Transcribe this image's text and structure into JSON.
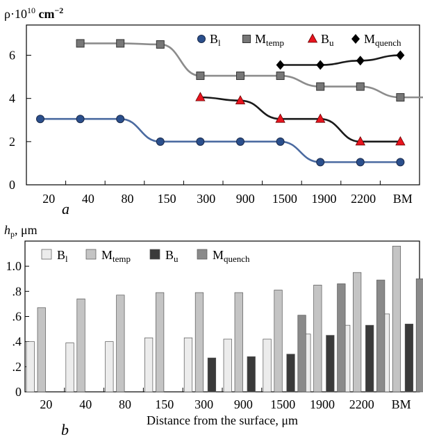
{
  "chart_data": [
    {
      "type": "line",
      "panel_label": "a",
      "ylabel": "ρ·10",
      "ylabel_exp": "10",
      "ylabel_unit": "cm",
      "ylabel_unit_exp": "−2",
      "ylim": [
        0,
        7.4
      ],
      "yticks": [
        0,
        2,
        4,
        6
      ],
      "categories": [
        "20",
        "40",
        "80",
        "150",
        "300",
        "900",
        "1500",
        "1900",
        "2200",
        "BM"
      ],
      "series": [
        {
          "name": "B",
          "sub": "l",
          "marker": "circle",
          "color": "#4a6aa0",
          "line": "#4a6aa0",
          "marker_color": "#2b4f8c",
          "values": [
            3.05,
            3.05,
            3.05,
            2.0,
            2.0,
            2.0,
            2.0,
            1.05,
            1.05,
            1.05
          ]
        },
        {
          "name": "M",
          "sub": "temp",
          "marker": "square",
          "color": "#808080",
          "line": "#8c8c8c",
          "marker_color": "#777777",
          "values": [
            6.55,
            6.55,
            6.5,
            5.05,
            5.05,
            5.05,
            4.55,
            4.55,
            4.05,
            4.05
          ]
        },
        {
          "name": "B",
          "sub": "u",
          "marker": "triangle",
          "color": "#e8141e",
          "line": "#1a1a1a",
          "marker_color": "#e8141e",
          "values": [
            null,
            null,
            null,
            null,
            4.05,
            3.9,
            3.05,
            3.05,
            2.0,
            2.0
          ]
        },
        {
          "name": "M",
          "sub": "quench",
          "marker": "diamond",
          "color": "#1a1a1a",
          "line": "#1a1a1a",
          "marker_color": "#000000",
          "values": [
            null,
            null,
            null,
            null,
            null,
            null,
            5.55,
            5.55,
            5.75,
            6.0
          ]
        }
      ],
      "x_positions": [
        0,
        1,
        2,
        3,
        4,
        5,
        6,
        7,
        8,
        9
      ],
      "marker_positions": [
        [
          0,
          1,
          2,
          3,
          4,
          5,
          6,
          7,
          8,
          9
        ],
        [
          1,
          2,
          3,
          4,
          5,
          6,
          7,
          8,
          9,
          10
        ],
        [
          null,
          null,
          null,
          null,
          4,
          5,
          6,
          7,
          8,
          9
        ],
        [
          null,
          null,
          null,
          null,
          null,
          null,
          6,
          7,
          8,
          9
        ]
      ],
      "legend": "top-right"
    },
    {
      "type": "bar",
      "panel_label": "b",
      "ylabel": "h",
      "ylabel_sub": "p",
      "ylabel_unit": ", μm",
      "xlabel": "Distance from the surface, μm",
      "ylim": [
        0,
        1.2
      ],
      "yticks": [
        "0",
        ".2",
        ".4",
        ".6",
        ".8",
        "1.0"
      ],
      "ytick_values": [
        0,
        0.2,
        0.4,
        0.6,
        0.8,
        1.0
      ],
      "categories": [
        "20",
        "40",
        "80",
        "150",
        "300",
        "900",
        "1500",
        "1900",
        "2200",
        "BM"
      ],
      "series": [
        {
          "name": "B",
          "sub": "l",
          "color": "#ececec",
          "values": [
            0.4,
            0.39,
            0.4,
            0.43,
            0.43,
            0.42,
            0.42,
            0.46,
            0.53,
            0.62
          ]
        },
        {
          "name": "M",
          "sub": "temp",
          "color": "#c4c4c4",
          "values": [
            0.67,
            0.74,
            0.77,
            0.79,
            0.79,
            0.79,
            0.81,
            0.85,
            0.95,
            1.16
          ]
        },
        {
          "name": "B",
          "sub": "u",
          "color": "#3a3a3a",
          "values": [
            null,
            null,
            null,
            null,
            0.27,
            0.28,
            0.3,
            0.45,
            0.53,
            0.54
          ]
        },
        {
          "name": "M",
          "sub": "quench",
          "color": "#8a8a8a",
          "values": [
            null,
            null,
            null,
            null,
            null,
            null,
            0.61,
            0.86,
            0.89,
            0.9
          ]
        }
      ],
      "legend": "top-left"
    }
  ]
}
